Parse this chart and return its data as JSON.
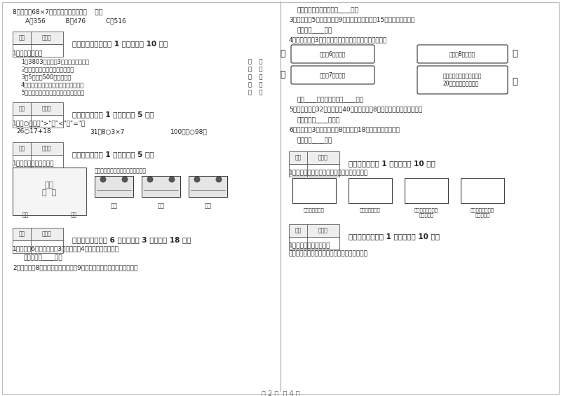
{
  "page_bg": "#ffffff",
  "text_color": "#222222",
  "page_number": "第 2 页  共 4 页",
  "left_column": {
    "q8_text": "8．估一估68×7的积最正确的可能是（    ）。",
    "q8_options": "A．356          B．476          C．516",
    "section5_header": "五、判断对与错（共 1 大题，共计 10 分）",
    "section5_q1": "1．我知道对错。",
    "section5_items": [
      "1．3803中的两个3表示的意思相同。",
      "2．三位数不一定都比四位数小。",
      "3．5千米与500米一样长。",
      "4．读数和写数都是从最高位开始读写。",
      "5．早晨面向太阳，后面是西，左面北。"
    ],
    "section6_header": "六、比一比（共 1 大题，共计 5 分）",
    "section6_q1": "1．在○里填上\">\"、\"<\"或\"=\"。",
    "section6_items": [
      "26○17+18",
      "31－8○3×7",
      "100厘米○98米"
    ],
    "section7_header": "七、连一连（共 1 大题，共计 5 分）",
    "section7_q1": "1．观察物体，连一连。",
    "section7_prompt": "请你连一连，下面分别是谁看到的？",
    "section7_people": [
      "小虹",
      "小东",
      "小明"
    ],
    "section7_scene_labels": [
      "小家",
      "小明"
    ],
    "section8_header": "八、解决问题（共 6 小题，每题 3 分，共计 18 分）",
    "section8_q1": "1．小明有6套照片，每套3张，又买来4张，现在有多少张？",
    "section8_a1": "答：现在有____张。",
    "section8_q2": "2．小刚存了8元，小兵存的是小刚的9倍，小兵和小刚一共存了多少钱？"
  },
  "right_column": {
    "cont_a2": "答：小兵和小刚一共存了____元。",
    "q3": "3．小兔摘了5行萝卜，每行9个，送给邻居兔奶奶15个，还剩多少个？",
    "a3": "答：还剩____个。",
    "q4": "4．青蛙妈妈和3只小青蛙比，谁捉的害虫多？多多少只？",
    "bubble1": "我捉了6只害虫。",
    "bubble2": "我捉了8只害虫。",
    "bubble3": "我捉了7只害虫。",
    "bubble4_line1": "孩子们，加油！我已经捉了",
    "bubble4_line2": "20只了，我们来比赛。",
    "a4": "答：____捉的害虫多，多____只。",
    "q5": "5．二小一班有32人，二班有40人，做游戏每8人一个组，可以分几组玩？",
    "a5": "答：可以分____组玩。",
    "q6": "6．食堂运来3车大米，每车8袋，吃掉18袋后，还剩多少袋？",
    "a6": "答：还剩____袋。",
    "section10_header": "十、综合题（共 1 大题，共计 10 分）",
    "section10_q1": "1．把下面的长方形用一条线段按要求分一分。",
    "section10_shapes": [
      "分成两个三角形",
      "分成两个四边形",
      [
        "分成一个三角形和",
        "一个四边形"
      ],
      [
        "分成一个三角形和",
        "一个五边形"
      ]
    ],
    "section11_header": "十一、附加题（共 1 大题，共计 10 分）",
    "section11_q1": "1．观察分析，我统计。",
    "section11_sub": "下面是希望小学二年级一班女生身高统计情况。"
  }
}
